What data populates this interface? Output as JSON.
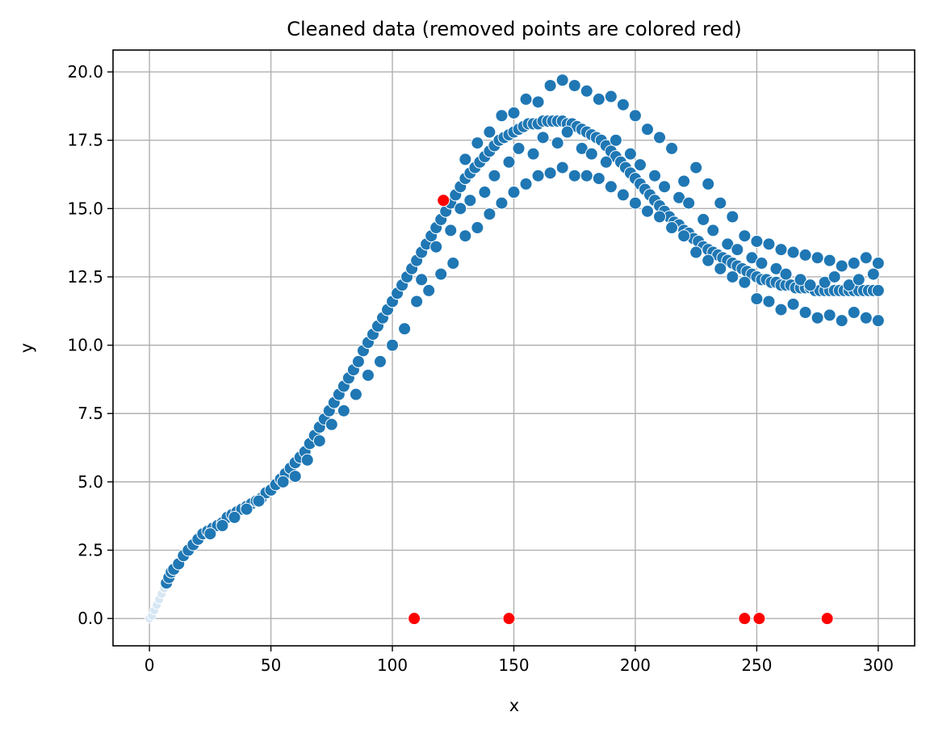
{
  "chart_data": {
    "type": "scatter",
    "title": "Cleaned data (removed points are colored red)",
    "xlabel": "x",
    "ylabel": "y",
    "xlim": [
      -15,
      315
    ],
    "ylim": [
      -1.0,
      20.8
    ],
    "xticks": [
      0,
      50,
      100,
      150,
      200,
      250,
      300
    ],
    "yticks": [
      0.0,
      2.5,
      5.0,
      7.5,
      10.0,
      12.5,
      15.0,
      17.5,
      20.0
    ],
    "xtick_labels": [
      "0",
      "50",
      "100",
      "150",
      "200",
      "250",
      "300"
    ],
    "ytick_labels": [
      "0.0",
      "2.5",
      "5.0",
      "7.5",
      "10.0",
      "12.5",
      "15.0",
      "17.5",
      "20.0"
    ],
    "grid": true,
    "colors": {
      "kept": "#1f77b4",
      "removed": "#ff0000",
      "grid": "#b0b0b0"
    },
    "kept_points": [
      [
        0,
        0.0
      ],
      [
        1,
        0.1
      ],
      [
        2,
        0.3
      ],
      [
        3,
        0.5
      ],
      [
        4,
        0.7
      ],
      [
        5,
        0.9
      ],
      [
        6,
        1.1
      ],
      [
        7,
        1.3
      ],
      [
        8,
        1.5
      ],
      [
        9,
        1.7
      ],
      [
        10,
        1.8
      ],
      [
        12,
        2.0
      ],
      [
        14,
        2.3
      ],
      [
        16,
        2.5
      ],
      [
        18,
        2.7
      ],
      [
        20,
        2.9
      ],
      [
        22,
        3.1
      ],
      [
        24,
        3.2
      ],
      [
        26,
        3.3
      ],
      [
        28,
        3.4
      ],
      [
        30,
        3.5
      ],
      [
        32,
        3.7
      ],
      [
        34,
        3.8
      ],
      [
        36,
        3.9
      ],
      [
        38,
        4.0
      ],
      [
        40,
        4.1
      ],
      [
        42,
        4.2
      ],
      [
        44,
        4.3
      ],
      [
        46,
        4.4
      ],
      [
        48,
        4.6
      ],
      [
        50,
        4.7
      ],
      [
        52,
        4.9
      ],
      [
        54,
        5.1
      ],
      [
        56,
        5.3
      ],
      [
        58,
        5.5
      ],
      [
        60,
        5.7
      ],
      [
        62,
        5.9
      ],
      [
        64,
        6.1
      ],
      [
        66,
        6.4
      ],
      [
        68,
        6.7
      ],
      [
        70,
        7.0
      ],
      [
        72,
        7.3
      ],
      [
        74,
        7.6
      ],
      [
        76,
        7.9
      ],
      [
        78,
        8.2
      ],
      [
        80,
        8.5
      ],
      [
        82,
        8.8
      ],
      [
        84,
        9.1
      ],
      [
        86,
        9.4
      ],
      [
        88,
        9.8
      ],
      [
        90,
        10.1
      ],
      [
        92,
        10.4
      ],
      [
        94,
        10.7
      ],
      [
        96,
        11.0
      ],
      [
        98,
        11.3
      ],
      [
        100,
        11.6
      ],
      [
        102,
        11.9
      ],
      [
        104,
        12.2
      ],
      [
        106,
        12.5
      ],
      [
        108,
        12.8
      ],
      [
        110,
        13.1
      ],
      [
        112,
        13.4
      ],
      [
        114,
        13.7
      ],
      [
        116,
        14.0
      ],
      [
        118,
        14.3
      ],
      [
        120,
        14.6
      ],
      [
        122,
        14.9
      ],
      [
        124,
        15.2
      ],
      [
        126,
        15.5
      ],
      [
        128,
        15.8
      ],
      [
        130,
        16.1
      ],
      [
        132,
        16.3
      ],
      [
        134,
        16.5
      ],
      [
        136,
        16.7
      ],
      [
        138,
        16.9
      ],
      [
        140,
        17.1
      ],
      [
        142,
        17.3
      ],
      [
        144,
        17.5
      ],
      [
        146,
        17.6
      ],
      [
        148,
        17.7
      ],
      [
        150,
        17.8
      ],
      [
        152,
        17.9
      ],
      [
        154,
        18.0
      ],
      [
        156,
        18.1
      ],
      [
        158,
        18.1
      ],
      [
        160,
        18.1
      ],
      [
        162,
        18.2
      ],
      [
        164,
        18.2
      ],
      [
        166,
        18.2
      ],
      [
        168,
        18.2
      ],
      [
        170,
        18.2
      ],
      [
        172,
        18.1
      ],
      [
        174,
        18.1
      ],
      [
        176,
        18.0
      ],
      [
        178,
        17.9
      ],
      [
        180,
        17.8
      ],
      [
        182,
        17.7
      ],
      [
        184,
        17.6
      ],
      [
        186,
        17.5
      ],
      [
        188,
        17.3
      ],
      [
        190,
        17.1
      ],
      [
        192,
        16.9
      ],
      [
        194,
        16.7
      ],
      [
        196,
        16.5
      ],
      [
        198,
        16.3
      ],
      [
        200,
        16.1
      ],
      [
        202,
        15.9
      ],
      [
        204,
        15.7
      ],
      [
        206,
        15.5
      ],
      [
        208,
        15.3
      ],
      [
        210,
        15.1
      ],
      [
        212,
        14.9
      ],
      [
        214,
        14.7
      ],
      [
        216,
        14.5
      ],
      [
        218,
        14.4
      ],
      [
        220,
        14.2
      ],
      [
        222,
        14.1
      ],
      [
        224,
        13.9
      ],
      [
        226,
        13.8
      ],
      [
        228,
        13.6
      ],
      [
        230,
        13.5
      ],
      [
        232,
        13.4
      ],
      [
        234,
        13.3
      ],
      [
        236,
        13.2
      ],
      [
        238,
        13.1
      ],
      [
        240,
        13.0
      ],
      [
        242,
        12.9
      ],
      [
        244,
        12.8
      ],
      [
        246,
        12.7
      ],
      [
        248,
        12.6
      ],
      [
        250,
        12.5
      ],
      [
        252,
        12.4
      ],
      [
        254,
        12.4
      ],
      [
        256,
        12.3
      ],
      [
        258,
        12.3
      ],
      [
        260,
        12.2
      ],
      [
        262,
        12.2
      ],
      [
        264,
        12.2
      ],
      [
        266,
        12.1
      ],
      [
        268,
        12.1
      ],
      [
        270,
        12.1
      ],
      [
        272,
        12.1
      ],
      [
        274,
        12.0
      ],
      [
        276,
        12.0
      ],
      [
        278,
        12.0
      ],
      [
        280,
        12.0
      ],
      [
        282,
        12.0
      ],
      [
        284,
        12.0
      ],
      [
        286,
        12.0
      ],
      [
        288,
        12.0
      ],
      [
        290,
        12.0
      ],
      [
        292,
        12.0
      ],
      [
        294,
        12.0
      ],
      [
        296,
        12.0
      ],
      [
        298,
        12.0
      ],
      [
        300,
        12.0
      ],
      [
        105,
        10.6
      ],
      [
        110,
        11.6
      ],
      [
        115,
        12.0
      ],
      [
        120,
        12.6
      ],
      [
        125,
        13.0
      ],
      [
        130,
        14.0
      ],
      [
        135,
        14.3
      ],
      [
        140,
        14.8
      ],
      [
        145,
        15.2
      ],
      [
        150,
        15.6
      ],
      [
        155,
        15.9
      ],
      [
        160,
        16.2
      ],
      [
        165,
        16.3
      ],
      [
        170,
        16.5
      ],
      [
        175,
        16.2
      ],
      [
        180,
        16.2
      ],
      [
        185,
        16.1
      ],
      [
        190,
        15.8
      ],
      [
        195,
        15.5
      ],
      [
        200,
        15.2
      ],
      [
        205,
        14.9
      ],
      [
        210,
        14.7
      ],
      [
        215,
        14.3
      ],
      [
        220,
        14.0
      ],
      [
        225,
        13.4
      ],
      [
        230,
        13.1
      ],
      [
        235,
        12.8
      ],
      [
        240,
        12.5
      ],
      [
        245,
        12.3
      ],
      [
        250,
        11.7
      ],
      [
        255,
        11.6
      ],
      [
        260,
        11.3
      ],
      [
        265,
        11.5
      ],
      [
        270,
        11.2
      ],
      [
        275,
        11.0
      ],
      [
        280,
        11.1
      ],
      [
        285,
        10.9
      ],
      [
        290,
        11.2
      ],
      [
        295,
        11.0
      ],
      [
        300,
        10.9
      ],
      [
        130,
        16.8
      ],
      [
        135,
        17.4
      ],
      [
        140,
        17.8
      ],
      [
        145,
        18.4
      ],
      [
        150,
        18.5
      ],
      [
        155,
        19.0
      ],
      [
        160,
        18.9
      ],
      [
        165,
        19.5
      ],
      [
        170,
        19.7
      ],
      [
        175,
        19.5
      ],
      [
        180,
        19.3
      ],
      [
        185,
        19.0
      ],
      [
        190,
        19.1
      ],
      [
        195,
        18.8
      ],
      [
        200,
        18.4
      ],
      [
        205,
        17.9
      ],
      [
        210,
        17.6
      ],
      [
        215,
        17.2
      ],
      [
        220,
        16.0
      ],
      [
        225,
        16.5
      ],
      [
        230,
        15.9
      ],
      [
        235,
        15.2
      ],
      [
        240,
        14.7
      ],
      [
        245,
        14.0
      ],
      [
        250,
        13.8
      ],
      [
        255,
        13.7
      ],
      [
        260,
        13.5
      ],
      [
        265,
        13.4
      ],
      [
        270,
        13.3
      ],
      [
        275,
        13.2
      ],
      [
        280,
        13.1
      ],
      [
        285,
        12.9
      ],
      [
        290,
        13.0
      ],
      [
        295,
        13.2
      ],
      [
        300,
        13.0
      ],
      [
        112,
        12.4
      ],
      [
        118,
        13.6
      ],
      [
        124,
        14.2
      ],
      [
        128,
        15.0
      ],
      [
        132,
        15.3
      ],
      [
        138,
        15.6
      ],
      [
        142,
        16.2
      ],
      [
        148,
        16.7
      ],
      [
        152,
        17.2
      ],
      [
        158,
        17.0
      ],
      [
        162,
        17.6
      ],
      [
        168,
        17.4
      ],
      [
        172,
        17.8
      ],
      [
        178,
        17.2
      ],
      [
        182,
        17.0
      ],
      [
        188,
        16.7
      ],
      [
        192,
        17.5
      ],
      [
        198,
        17.0
      ],
      [
        202,
        16.6
      ],
      [
        208,
        16.2
      ],
      [
        212,
        15.8
      ],
      [
        218,
        15.4
      ],
      [
        222,
        15.2
      ],
      [
        228,
        14.6
      ],
      [
        232,
        14.2
      ],
      [
        238,
        13.7
      ],
      [
        242,
        13.5
      ],
      [
        248,
        13.2
      ],
      [
        252,
        13.0
      ],
      [
        258,
        12.8
      ],
      [
        262,
        12.6
      ],
      [
        268,
        12.4
      ],
      [
        272,
        12.2
      ],
      [
        278,
        12.3
      ],
      [
        282,
        12.5
      ],
      [
        288,
        12.2
      ],
      [
        292,
        12.4
      ],
      [
        298,
        12.6
      ],
      [
        60,
        5.2
      ],
      [
        65,
        5.8
      ],
      [
        70,
        6.5
      ],
      [
        75,
        7.1
      ],
      [
        80,
        7.6
      ],
      [
        85,
        8.2
      ],
      [
        90,
        8.9
      ],
      [
        95,
        9.4
      ],
      [
        100,
        10.0
      ],
      [
        40,
        4.0
      ],
      [
        45,
        4.3
      ],
      [
        55,
        5.0
      ],
      [
        35,
        3.7
      ],
      [
        30,
        3.4
      ],
      [
        25,
        3.1
      ]
    ],
    "removed_points": [
      [
        109,
        0.0
      ],
      [
        121,
        15.3
      ],
      [
        148,
        0.0
      ],
      [
        245,
        0.0
      ],
      [
        251,
        0.0
      ],
      [
        279,
        0.0
      ]
    ]
  }
}
